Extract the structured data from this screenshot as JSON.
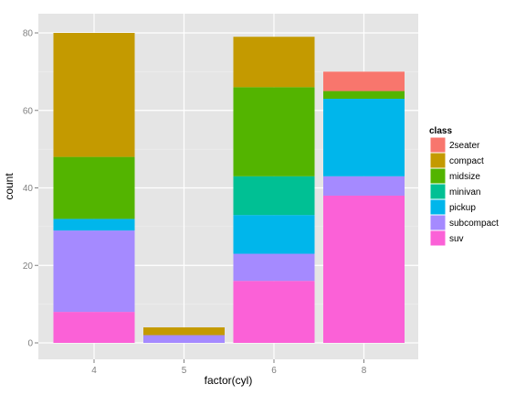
{
  "chart_data": {
    "type": "bar",
    "stacked": true,
    "xlabel": "factor(cyl)",
    "ylabel": "count",
    "categories": [
      "4",
      "5",
      "6",
      "8"
    ],
    "ylim": [
      0,
      85
    ],
    "yticks": [
      0,
      20,
      40,
      60,
      80
    ],
    "legend": {
      "title": "class",
      "position": "right"
    },
    "series": [
      {
        "name": "2seater",
        "color": "#F8766D",
        "values": [
          0,
          0,
          0,
          5
        ]
      },
      {
        "name": "compact",
        "color": "#C49A00",
        "values": [
          32,
          2,
          13,
          0
        ]
      },
      {
        "name": "midsize",
        "color": "#53B400",
        "values": [
          16,
          0,
          23,
          2
        ]
      },
      {
        "name": "minivan",
        "color": "#00C094",
        "values": [
          0,
          0,
          10,
          0
        ]
      },
      {
        "name": "pickup",
        "color": "#00B6EB",
        "values": [
          3,
          0,
          10,
          20
        ]
      },
      {
        "name": "subcompact",
        "color": "#A58AFF",
        "values": [
          21,
          2,
          7,
          5
        ]
      },
      {
        "name": "suv",
        "color": "#FB61D7",
        "values": [
          8,
          0,
          16,
          38
        ]
      }
    ],
    "panel_background": "#E5E5E5",
    "grid_color": "#FFFFFF"
  }
}
